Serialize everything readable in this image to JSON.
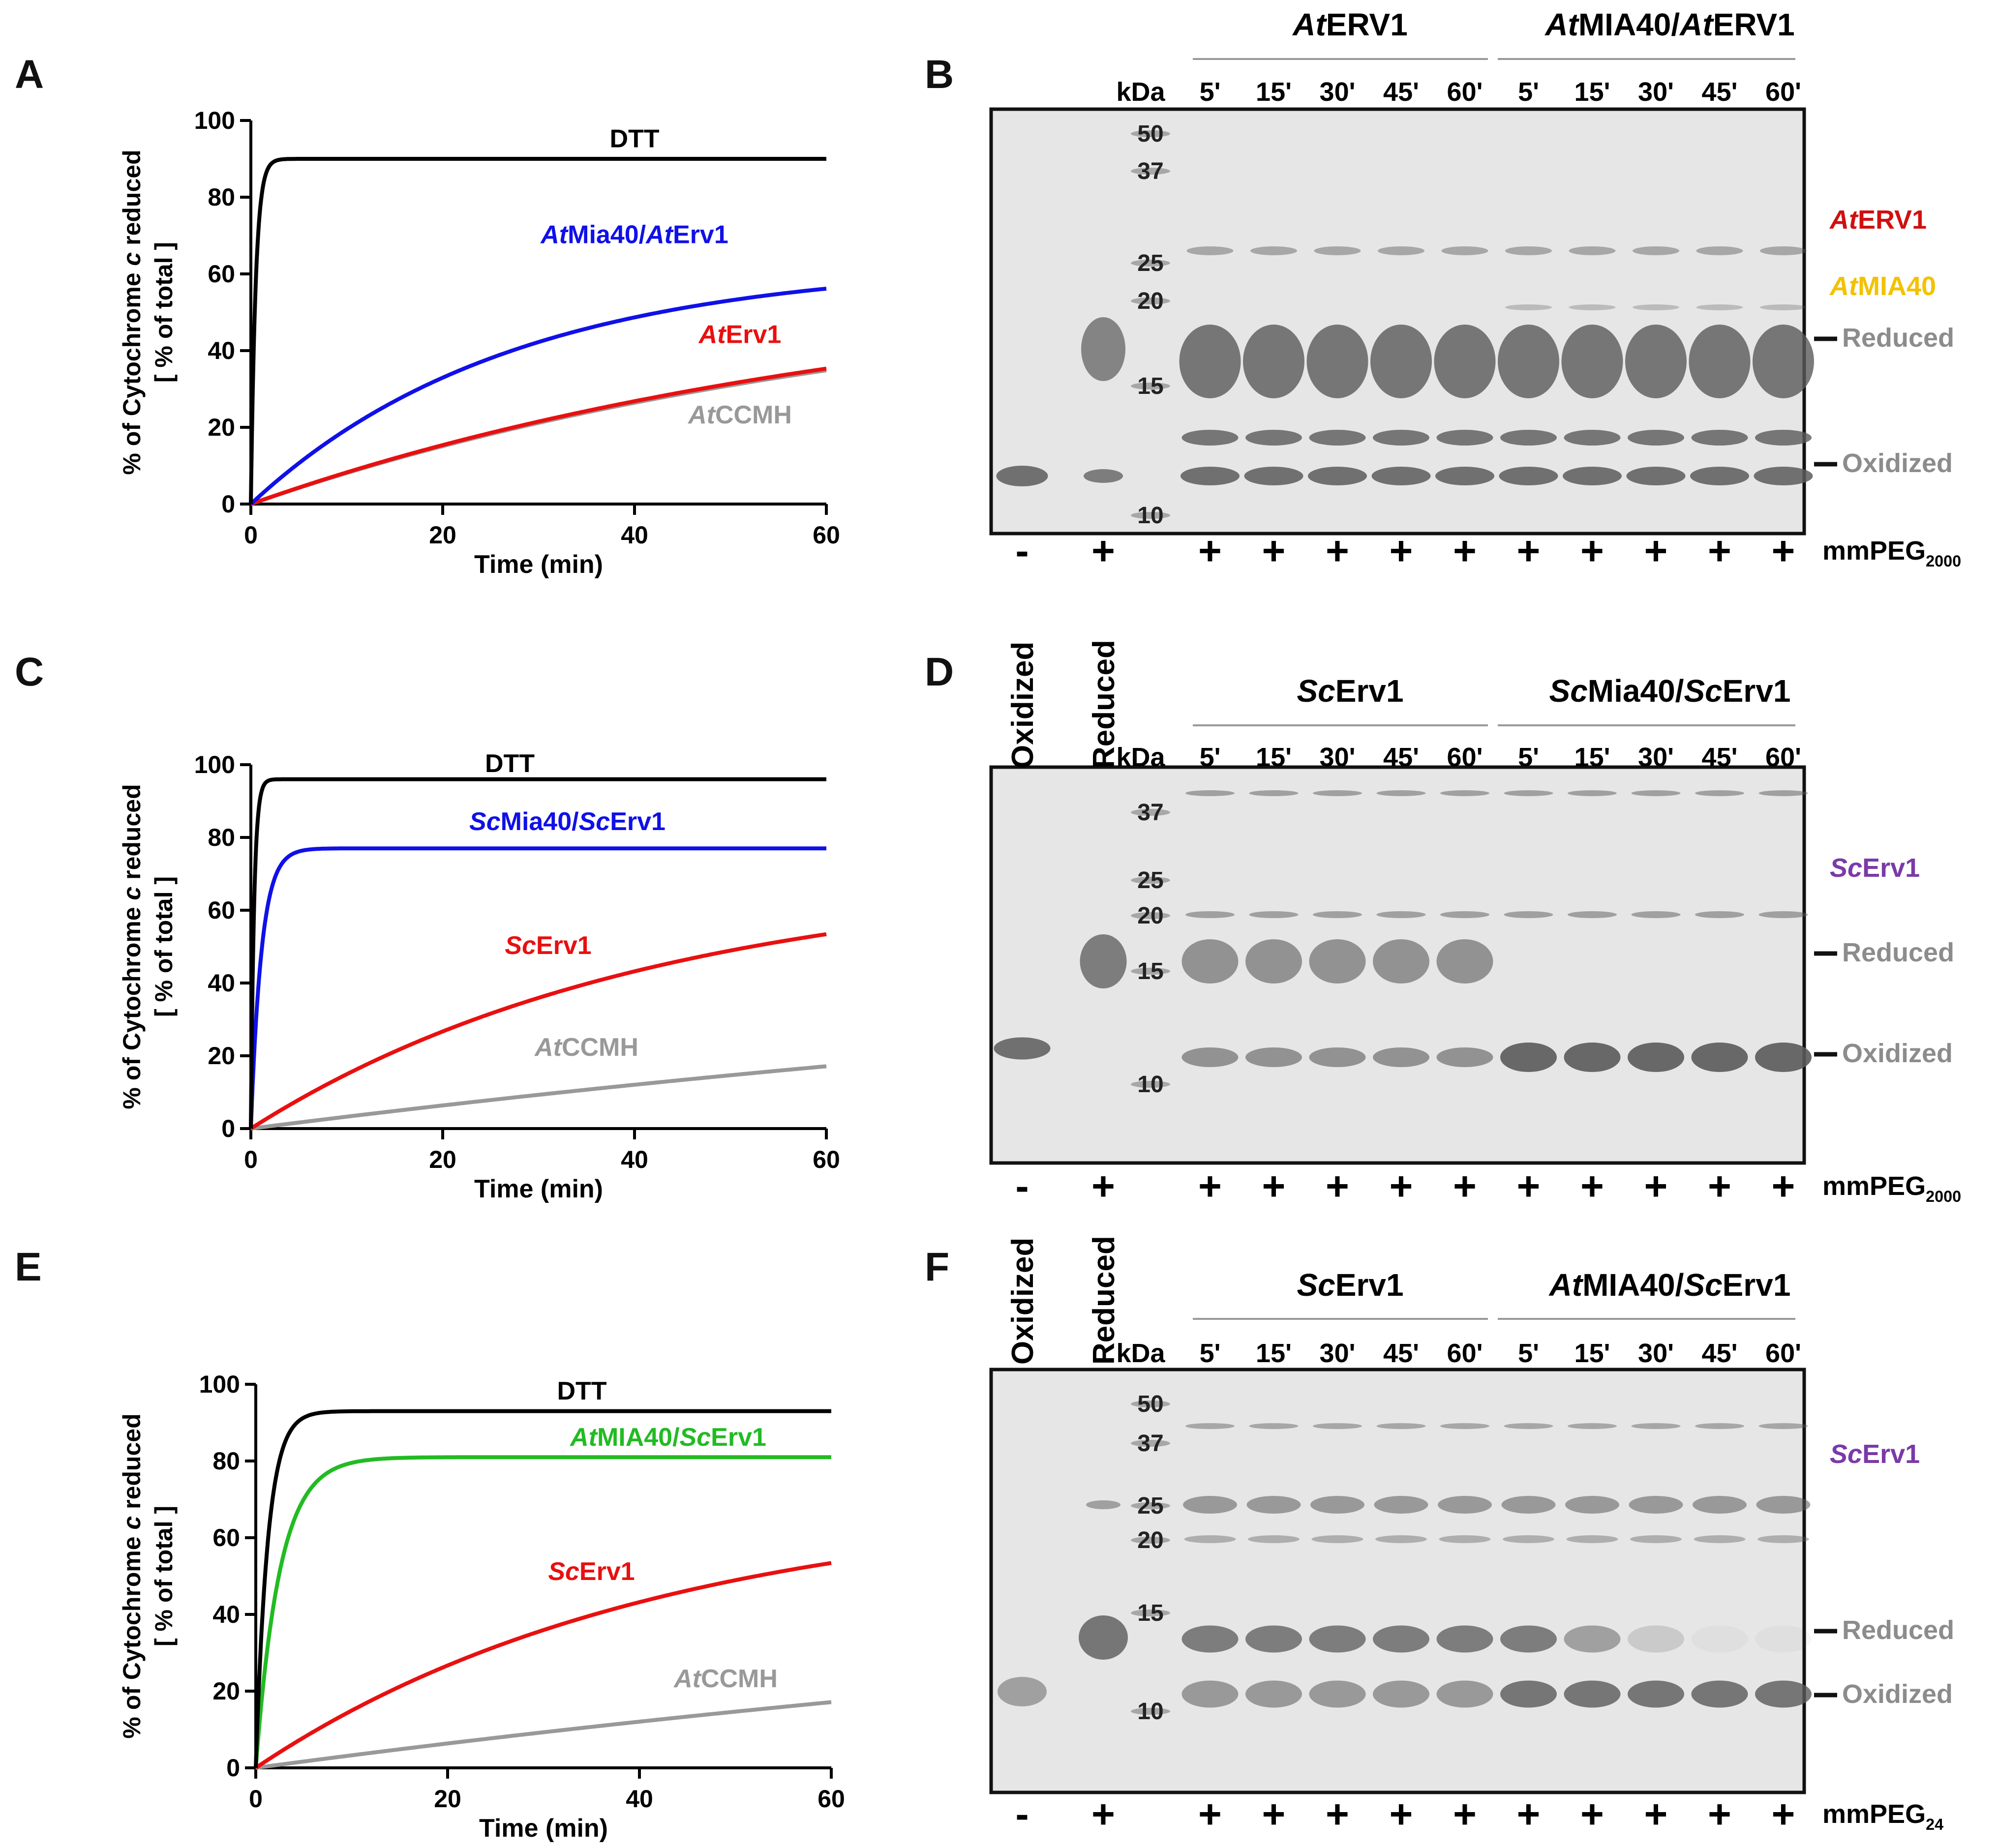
{
  "panels": {
    "A": "A",
    "B": "B",
    "C": "C",
    "D": "D",
    "E": "E",
    "F": "F"
  },
  "chart_data": [
    {
      "panel": "A",
      "type": "line",
      "xlabel": "Time (min)",
      "ylabel_line1": "% of Cytochrome c reduced",
      "ylabel_line2": "[ % of total ]",
      "xlim": [
        0,
        60
      ],
      "ylim": [
        0,
        100
      ],
      "xticks": [
        0,
        20,
        40,
        60
      ],
      "yticks": [
        0,
        20,
        40,
        60,
        80,
        100
      ],
      "series": [
        {
          "name": "DTT",
          "label_pre": "",
          "label_ital": "",
          "label_rest": "DTT",
          "color": "#000000",
          "plateau": 90,
          "k": 2.0,
          "label_at": [
            40,
            93
          ]
        },
        {
          "name": "AtMia40/AtErv1",
          "label_pre": "",
          "label_ital": "At",
          "label_rest": "Mia40/AtErv1",
          "color": "#1010e8",
          "plateau": 63,
          "k": 0.037,
          "label_at": [
            40,
            68
          ]
        },
        {
          "name": "AtErv1",
          "label_pre": "",
          "label_ital": "At",
          "label_rest": "Erv1",
          "color": "#e81010",
          "plateau": 60,
          "k": 0.0148,
          "label_at": [
            51,
            42
          ]
        },
        {
          "name": "AtCCMH",
          "label_pre": "",
          "label_ital": "At",
          "label_rest": "CCMH",
          "color": "#999999",
          "plateau": 60,
          "k": 0.0145,
          "label_at": [
            51,
            21
          ]
        }
      ],
      "series_values_at_x": {
        "x": [
          0,
          20,
          40,
          60
        ],
        "DTT": [
          0,
          90,
          90,
          90
        ],
        "AtMia40/AtErv1": [
          0,
          33,
          48,
          56
        ],
        "AtErv1": [
          0,
          15,
          27,
          36
        ],
        "AtCCMH": [
          0,
          15,
          26,
          35
        ]
      }
    },
    {
      "panel": "C",
      "type": "line",
      "xlabel": "Time (min)",
      "ylabel_line1": "% of Cytochrome c reduced",
      "ylabel_line2": "[ % of total ]",
      "xlim": [
        0,
        60
      ],
      "ylim": [
        0,
        100
      ],
      "xticks": [
        0,
        20,
        40,
        60
      ],
      "yticks": [
        0,
        20,
        40,
        60,
        80,
        100
      ],
      "series": [
        {
          "name": "DTT",
          "label_ital": "",
          "label_rest": "DTT",
          "color": "#000000",
          "plateau": 96,
          "k": 3.0,
          "label_at": [
            27,
            98
          ]
        },
        {
          "name": "ScMia40/ScErv1",
          "label_ital": "Sc",
          "label_rest": "Mia40/ScErv1",
          "color": "#1010e8",
          "plateau": 77,
          "k": 0.9,
          "label_at": [
            33,
            82
          ]
        },
        {
          "name": "ScErv1",
          "label_ital": "Sc",
          "label_rest": "Erv1",
          "color": "#e81010",
          "plateau": 70,
          "k": 0.024,
          "label_at": [
            31,
            48
          ]
        },
        {
          "name": "AtCCMH",
          "label_ital": "At",
          "label_rest": "CCMH",
          "color": "#999999",
          "plateau": 60,
          "k": 0.0056,
          "label_at": [
            35,
            20
          ]
        }
      ],
      "series_values_at_x": {
        "x": [
          0,
          20,
          40,
          60
        ],
        "DTT": [
          0,
          96,
          96,
          96
        ],
        "ScMia40/ScErv1": [
          0,
          77,
          77,
          77
        ],
        "ScErv1": [
          0,
          27,
          43,
          53
        ],
        "AtCCMH": [
          0,
          6,
          12,
          17
        ]
      }
    },
    {
      "panel": "E",
      "type": "line",
      "xlabel": "Time (min)",
      "ylabel_line1": "% of Cytochrome c reduced",
      "ylabel_line2": "[ % of total ]",
      "xlim": [
        0,
        60
      ],
      "ylim": [
        0,
        100
      ],
      "xticks": [
        0,
        20,
        40,
        60
      ],
      "yticks": [
        0,
        20,
        40,
        60,
        80,
        100
      ],
      "series": [
        {
          "name": "DTT",
          "label_ital": "",
          "label_rest": "DTT",
          "color": "#000000",
          "plateau": 93,
          "k": 0.8,
          "label_at": [
            34,
            96
          ]
        },
        {
          "name": "AtMIA40/ScErv1",
          "label_ital": "At",
          "label_rest": "MIA40/ScErv1",
          "color": "#22bb22",
          "plateau": 81,
          "k": 0.4,
          "label_at": [
            43,
            84
          ]
        },
        {
          "name": "ScErv1",
          "label_ital": "Sc",
          "label_rest": "Erv1",
          "color": "#e81010",
          "plateau": 70,
          "k": 0.024,
          "label_at": [
            35,
            49
          ]
        },
        {
          "name": "AtCCMH",
          "label_ital": "At",
          "label_rest": "CCMH",
          "color": "#999999",
          "plateau": 60,
          "k": 0.0056,
          "label_at": [
            49,
            21
          ]
        }
      ],
      "series_values_at_x": {
        "x": [
          0,
          20,
          40,
          60
        ],
        "DTT": [
          0,
          93,
          93,
          93
        ],
        "AtMIA40/ScErv1": [
          0,
          81,
          81,
          81
        ],
        "ScErv1": [
          0,
          27,
          43,
          53
        ],
        "AtCCMH": [
          0,
          6,
          12,
          17
        ]
      }
    }
  ],
  "gels": [
    {
      "panel": "B",
      "top_labels": [],
      "group1_ital": "At",
      "group1_rest": "ERV1",
      "group2_ital": "At",
      "group2_mid": "MIA40/",
      "group2_ital2": "At",
      "group2_rest": "ERV1",
      "kda": "kDa",
      "timepoints": [
        "5'",
        "15'",
        "30'",
        "45'",
        "60'",
        "5'",
        "15'",
        "30'",
        "45'",
        "60'"
      ],
      "markers": [
        "50",
        "37",
        "25",
        "20",
        "15",
        "10"
      ],
      "lane_signs": [
        "-",
        "+",
        "+",
        "+",
        "+",
        "+",
        "+",
        "+",
        "+",
        "+",
        "+",
        "+"
      ],
      "reagent_main": "mmPEG",
      "reagent_sub": "2000",
      "right_labels": [
        {
          "ital": "At",
          "rest": "ERV1",
          "color": "#d01010"
        },
        {
          "ital": "At",
          "rest": "MIA40",
          "color": "#f2c200"
        },
        {
          "ital": "",
          "rest": "Reduced",
          "color": "#8c8c8c"
        },
        {
          "ital": "",
          "rest": "Oxidized",
          "color": "#8c8c8c"
        }
      ]
    },
    {
      "panel": "D",
      "top_labels": [
        "Oxidized",
        "Reduced"
      ],
      "group1_ital": "Sc",
      "group1_rest": "Erv1",
      "group2_ital": "Sc",
      "group2_mid": "Mia40/",
      "group2_ital2": "Sc",
      "group2_rest": "Erv1",
      "kda": "kDa",
      "timepoints": [
        "5'",
        "15'",
        "30'",
        "45'",
        "60'",
        "5'",
        "15'",
        "30'",
        "45'",
        "60'"
      ],
      "markers": [
        "37",
        "25",
        "20",
        "15",
        "10"
      ],
      "lane_signs": [
        "-",
        "+",
        "+",
        "+",
        "+",
        "+",
        "+",
        "+",
        "+",
        "+",
        "+",
        "+"
      ],
      "reagent_main": "mmPEG",
      "reagent_sub": "2000",
      "right_labels": [
        {
          "ital": "Sc",
          "rest": "Erv1",
          "color": "#7a3aa8"
        },
        {
          "ital": "",
          "rest": "Reduced",
          "color": "#8c8c8c"
        },
        {
          "ital": "",
          "rest": "Oxidized",
          "color": "#8c8c8c"
        }
      ]
    },
    {
      "panel": "F",
      "top_labels": [
        "Oxidized",
        "Reduced"
      ],
      "group1_ital": "Sc",
      "group1_rest": "Erv1",
      "group2_ital": "At",
      "group2_mid": "MIA40/",
      "group2_ital2": "Sc",
      "group2_rest": "Erv1",
      "kda": "kDa",
      "timepoints": [
        "5'",
        "15'",
        "30'",
        "45'",
        "60'",
        "5'",
        "15'",
        "30'",
        "45'",
        "60'"
      ],
      "markers": [
        "50",
        "37",
        "25",
        "20",
        "15",
        "10"
      ],
      "lane_signs": [
        "-",
        "+",
        "+",
        "+",
        "+",
        "+",
        "+",
        "+",
        "+",
        "+",
        "+",
        "+"
      ],
      "reagent_main": "mmPEG",
      "reagent_sub": "24",
      "right_labels": [
        {
          "ital": "Sc",
          "rest": "Erv1",
          "color": "#7a3aa8"
        },
        {
          "ital": "",
          "rest": "Reduced",
          "color": "#8c8c8c"
        },
        {
          "ital": "",
          "rest": "Oxidized",
          "color": "#8c8c8c"
        }
      ]
    }
  ]
}
